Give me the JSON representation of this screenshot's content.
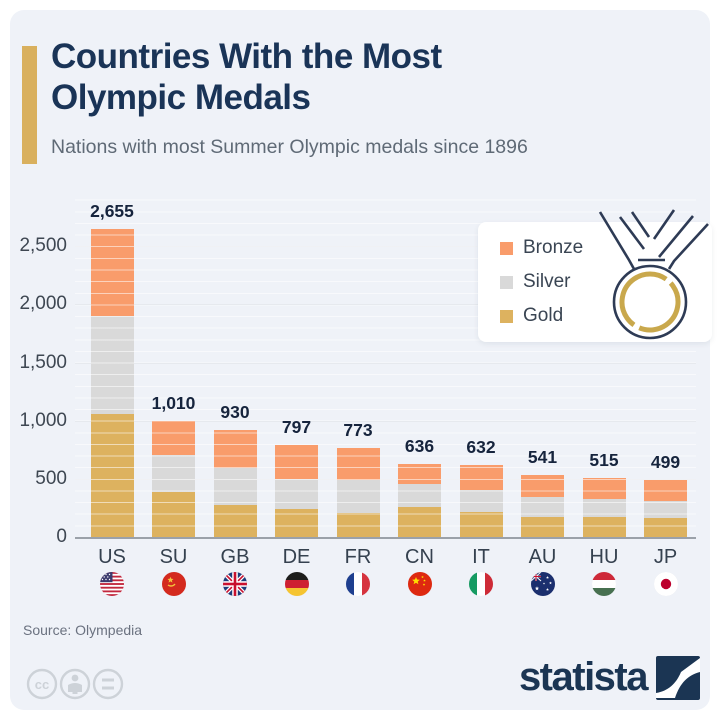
{
  "header": {
    "title_line1": "Countries With the Most",
    "title_line2": "Olympic Medals",
    "subtitle": "Nations with most Summer Olympic medals since 1896"
  },
  "legend": {
    "items": [
      {
        "label": "Bronze",
        "color": "#F99C6B"
      },
      {
        "label": "Silver",
        "color": "#D9D9D9"
      },
      {
        "label": "Gold",
        "color": "#DDB25F"
      }
    ]
  },
  "chart_data": {
    "type": "bar",
    "stacked": true,
    "title": "Countries With the Most Olympic Medals",
    "subtitle": "Nations with most Summer Olympic medals since 1896",
    "categories": [
      "US",
      "SU",
      "GB",
      "DE",
      "FR",
      "CN",
      "IT",
      "AU",
      "HU",
      "JP"
    ],
    "totals": [
      2655,
      1010,
      930,
      797,
      773,
      636,
      632,
      541,
      515,
      499
    ],
    "total_labels": [
      "2,655",
      "1,010",
      "930",
      "797",
      "773",
      "636",
      "632",
      "541",
      "515",
      "499"
    ],
    "series": [
      {
        "name": "Gold",
        "color": "#DDB25F",
        "values": [
          1070,
          395,
          285,
          248,
          215,
          263,
          222,
          178,
          181,
          170
        ]
      },
      {
        "name": "Silver",
        "color": "#D9D9D9",
        "values": [
          843,
          319,
          315,
          260,
          285,
          199,
          194,
          175,
          154,
          151
        ]
      },
      {
        "name": "Bronze",
        "color": "#F99C6B",
        "values": [
          742,
          296,
          330,
          289,
          273,
          174,
          216,
          188,
          180,
          178
        ]
      }
    ],
    "ylim": [
      0,
      2750
    ],
    "yticks": [
      0,
      500,
      1000,
      1500,
      2000,
      2500
    ],
    "ytick_labels": [
      "0",
      "500",
      "1,000",
      "1,500",
      "2,000",
      "2,500"
    ],
    "grid": true,
    "legend_position": "top-right"
  },
  "footer": {
    "source": "Source: Olympedia",
    "brand": "statista",
    "license_icons": [
      "cc-icon",
      "attribution-icon",
      "equal-icon"
    ]
  },
  "colors": {
    "card_bg": "#eff2f8",
    "title": "#1a3457",
    "subtitle": "#5f6a76",
    "accent_bar": "#d9b05e",
    "bronze": "#F99C6B",
    "silver": "#D9D9D9",
    "gold": "#DDB25F",
    "gridline": "#dde1e8",
    "axis_line": "#9ba1a9",
    "value_label": "#16243d",
    "axis_text": "#3e4752",
    "source_text": "#6b7280",
    "brand_navy": "#1b3553"
  }
}
